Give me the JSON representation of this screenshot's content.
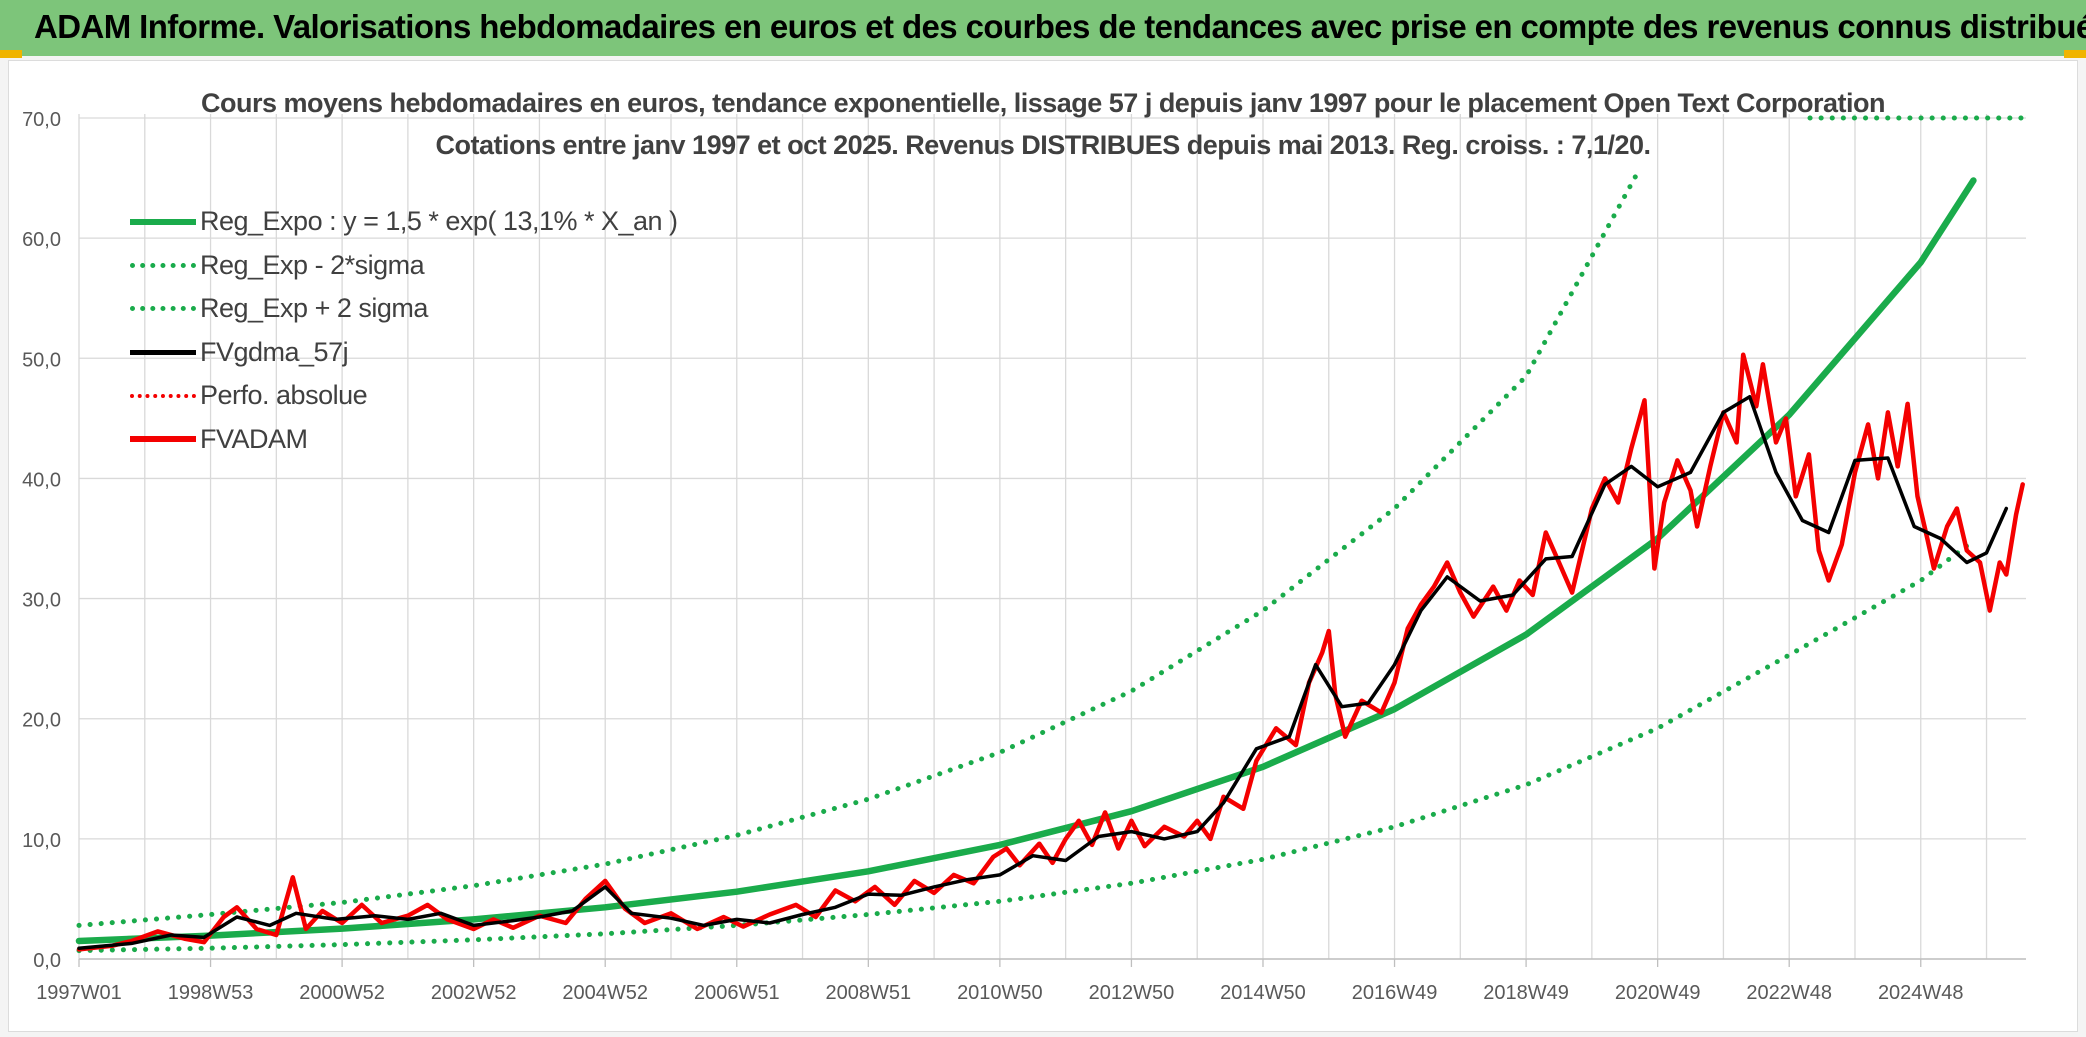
{
  "header": {
    "title": "ADAM Informe. Valorisations hebdomadaires en euros et des courbes de tendances avec prise en compte des revenus connus distribués"
  },
  "colors": {
    "header_bg": "#7dc57a",
    "trend_green": "#1aab4b",
    "adam_red": "#f40000",
    "smooth_black": "#000000"
  },
  "chart_data": {
    "type": "line",
    "title": "Cours moyens hebdomadaires en euros, tendance exponentielle, lissage 57 j depuis janv 1997 pour le placement Open Text Corporation",
    "subtitle": "Cotations entre janv 1997 et oct 2025. Revenus DISTRIBUES depuis mai 2013. Reg. croiss. : 7,1/20.",
    "xlabel": "",
    "ylabel": "",
    "x_range": [
      "1997W01",
      "2025W42"
    ],
    "x_ticks": [
      {
        "label": "1997W01",
        "year": 1997.0
      },
      {
        "label": "1998W53",
        "year": 1999.0
      },
      {
        "label": "2000W52",
        "year": 2001.0
      },
      {
        "label": "2002W52",
        "year": 2003.0
      },
      {
        "label": "2004W52",
        "year": 2005.0
      },
      {
        "label": "2006W51",
        "year": 2007.0
      },
      {
        "label": "2008W51",
        "year": 2009.0
      },
      {
        "label": "2010W50",
        "year": 2011.0
      },
      {
        "label": "2012W50",
        "year": 2013.0
      },
      {
        "label": "2014W50",
        "year": 2015.0
      },
      {
        "label": "2016W49",
        "year": 2017.0
      },
      {
        "label": "2018W49",
        "year": 2019.0
      },
      {
        "label": "2020W49",
        "year": 2021.0
      },
      {
        "label": "2022W48",
        "year": 2023.0
      },
      {
        "label": "2024W48",
        "year": 2025.0
      }
    ],
    "ylim": [
      0,
      70
    ],
    "y_ticks": [
      "0,0",
      "10,0",
      "20,0",
      "30,0",
      "40,0",
      "50,0",
      "60,0",
      "70,0"
    ],
    "grid": true,
    "legend_position": "top-left",
    "series": [
      {
        "name": "Reg_Expo : y = 1,5 * exp( 13,1% *  X_an )",
        "style": "solid-green",
        "points": [
          [
            1997.0,
            1.5
          ],
          [
            1999.0,
            1.95
          ],
          [
            2001.0,
            2.53
          ],
          [
            2003.0,
            3.3
          ],
          [
            2005.0,
            4.3
          ],
          [
            2007.0,
            5.6
          ],
          [
            2009.0,
            7.3
          ],
          [
            2011.0,
            9.5
          ],
          [
            2013.0,
            12.3
          ],
          [
            2015.0,
            16.0
          ],
          [
            2017.0,
            20.8
          ],
          [
            2019.0,
            27.0
          ],
          [
            2021.0,
            35.0
          ],
          [
            2023.0,
            45.3
          ],
          [
            2025.0,
            58.0
          ],
          [
            2025.8,
            64.8
          ]
        ]
      },
      {
        "name": "Reg_Exp - 2*sigma",
        "style": "dotted-green",
        "points": [
          [
            1997.0,
            0.7
          ],
          [
            1999.0,
            0.9
          ],
          [
            2001.0,
            1.2
          ],
          [
            2003.0,
            1.6
          ],
          [
            2005.0,
            2.1
          ],
          [
            2007.0,
            2.8
          ],
          [
            2009.0,
            3.7
          ],
          [
            2011.0,
            4.8
          ],
          [
            2013.0,
            6.3
          ],
          [
            2015.0,
            8.3
          ],
          [
            2017.0,
            11.0
          ],
          [
            2019.0,
            14.5
          ],
          [
            2021.0,
            19.2
          ],
          [
            2023.0,
            25.3
          ],
          [
            2025.0,
            31.5
          ],
          [
            2025.8,
            34.8
          ]
        ]
      },
      {
        "name": "Reg_Exp + 2 sigma",
        "style": "dotted-green",
        "points": [
          [
            1997.0,
            2.8
          ],
          [
            1999.0,
            3.7
          ],
          [
            2001.0,
            4.7
          ],
          [
            2003.0,
            6.1
          ],
          [
            2005.0,
            7.9
          ],
          [
            2007.0,
            10.3
          ],
          [
            2009.0,
            13.3
          ],
          [
            2011.0,
            17.2
          ],
          [
            2013.0,
            22.3
          ],
          [
            2015.0,
            29.0
          ],
          [
            2017.0,
            37.5
          ],
          [
            2019.0,
            48.5
          ],
          [
            2020.7,
            65.5
          ]
        ]
      },
      {
        "name": "FVgdma_57j",
        "style": "solid-black",
        "points": [
          [
            1997.0,
            0.9
          ],
          [
            1997.8,
            1.3
          ],
          [
            1998.4,
            2.0
          ],
          [
            1998.9,
            1.8
          ],
          [
            1999.4,
            3.5
          ],
          [
            1999.9,
            2.8
          ],
          [
            2000.3,
            3.8
          ],
          [
            2000.9,
            3.3
          ],
          [
            2001.5,
            3.6
          ],
          [
            2002.0,
            3.3
          ],
          [
            2002.5,
            3.8
          ],
          [
            2003.0,
            2.8
          ],
          [
            2003.6,
            3.2
          ],
          [
            2004.0,
            3.5
          ],
          [
            2004.5,
            4.0
          ],
          [
            2005.0,
            6.0
          ],
          [
            2005.4,
            3.8
          ],
          [
            2006.0,
            3.4
          ],
          [
            2006.5,
            2.8
          ],
          [
            2007.0,
            3.3
          ],
          [
            2007.5,
            3.0
          ],
          [
            2008.0,
            3.7
          ],
          [
            2008.5,
            4.3
          ],
          [
            2009.0,
            5.4
          ],
          [
            2009.5,
            5.3
          ],
          [
            2010.0,
            6.0
          ],
          [
            2010.5,
            6.6
          ],
          [
            2011.0,
            7.0
          ],
          [
            2011.5,
            8.6
          ],
          [
            2012.0,
            8.2
          ],
          [
            2012.5,
            10.2
          ],
          [
            2013.0,
            10.6
          ],
          [
            2013.5,
            10.0
          ],
          [
            2014.0,
            10.6
          ],
          [
            2014.4,
            13.0
          ],
          [
            2014.9,
            17.5
          ],
          [
            2015.4,
            18.5
          ],
          [
            2015.8,
            24.5
          ],
          [
            2016.2,
            21.0
          ],
          [
            2016.6,
            21.3
          ],
          [
            2017.0,
            24.5
          ],
          [
            2017.4,
            29.0
          ],
          [
            2017.8,
            31.8
          ],
          [
            2018.3,
            29.8
          ],
          [
            2018.8,
            30.3
          ],
          [
            2019.3,
            33.3
          ],
          [
            2019.7,
            33.5
          ],
          [
            2020.2,
            39.5
          ],
          [
            2020.6,
            41.0
          ],
          [
            2021.0,
            39.3
          ],
          [
            2021.5,
            40.5
          ],
          [
            2022.0,
            45.5
          ],
          [
            2022.4,
            46.8
          ],
          [
            2022.8,
            40.5
          ],
          [
            2023.2,
            36.5
          ],
          [
            2023.6,
            35.5
          ],
          [
            2024.0,
            41.5
          ],
          [
            2024.5,
            41.7
          ],
          [
            2024.9,
            36.0
          ],
          [
            2025.3,
            35.0
          ],
          [
            2025.7,
            33.0
          ],
          [
            2026.0,
            33.8
          ],
          [
            2026.3,
            37.5
          ]
        ]
      },
      {
        "name": "Perfo. absolue",
        "style": "dotted-red",
        "points": []
      },
      {
        "name": "FVADAM",
        "style": "solid-red",
        "points": [
          [
            1997.0,
            0.8
          ],
          [
            1997.5,
            1.1
          ],
          [
            1997.8,
            1.5
          ],
          [
            1998.2,
            2.3
          ],
          [
            1998.6,
            1.7
          ],
          [
            1998.9,
            1.4
          ],
          [
            1999.2,
            3.5
          ],
          [
            1999.4,
            4.3
          ],
          [
            1999.7,
            2.5
          ],
          [
            2000.0,
            2.0
          ],
          [
            2000.25,
            6.8
          ],
          [
            2000.45,
            2.5
          ],
          [
            2000.7,
            4.0
          ],
          [
            2001.0,
            3.0
          ],
          [
            2001.3,
            4.5
          ],
          [
            2001.6,
            3.0
          ],
          [
            2002.0,
            3.6
          ],
          [
            2002.3,
            4.5
          ],
          [
            2002.6,
            3.3
          ],
          [
            2003.0,
            2.5
          ],
          [
            2003.3,
            3.3
          ],
          [
            2003.6,
            2.6
          ],
          [
            2004.0,
            3.6
          ],
          [
            2004.4,
            3.0
          ],
          [
            2004.7,
            5.0
          ],
          [
            2005.0,
            6.5
          ],
          [
            2005.3,
            4.2
          ],
          [
            2005.6,
            3.0
          ],
          [
            2006.0,
            3.8
          ],
          [
            2006.4,
            2.5
          ],
          [
            2006.8,
            3.5
          ],
          [
            2007.1,
            2.7
          ],
          [
            2007.5,
            3.7
          ],
          [
            2007.9,
            4.5
          ],
          [
            2008.2,
            3.5
          ],
          [
            2008.5,
            5.7
          ],
          [
            2008.8,
            4.8
          ],
          [
            2009.1,
            6.0
          ],
          [
            2009.4,
            4.5
          ],
          [
            2009.7,
            6.5
          ],
          [
            2010.0,
            5.5
          ],
          [
            2010.3,
            7.0
          ],
          [
            2010.6,
            6.3
          ],
          [
            2010.9,
            8.5
          ],
          [
            2011.1,
            9.2
          ],
          [
            2011.3,
            7.8
          ],
          [
            2011.6,
            9.6
          ],
          [
            2011.8,
            8.0
          ],
          [
            2012.0,
            10.0
          ],
          [
            2012.2,
            11.5
          ],
          [
            2012.4,
            9.5
          ],
          [
            2012.6,
            12.2
          ],
          [
            2012.8,
            9.2
          ],
          [
            2013.0,
            11.5
          ],
          [
            2013.2,
            9.4
          ],
          [
            2013.5,
            11.0
          ],
          [
            2013.8,
            10.2
          ],
          [
            2014.0,
            11.5
          ],
          [
            2014.2,
            10.0
          ],
          [
            2014.4,
            13.5
          ],
          [
            2014.7,
            12.5
          ],
          [
            2014.9,
            16.5
          ],
          [
            2015.2,
            19.2
          ],
          [
            2015.5,
            17.8
          ],
          [
            2015.7,
            23.0
          ],
          [
            2015.9,
            25.5
          ],
          [
            2016.0,
            27.3
          ],
          [
            2016.1,
            22.0
          ],
          [
            2016.25,
            18.5
          ],
          [
            2016.5,
            21.5
          ],
          [
            2016.8,
            20.5
          ],
          [
            2017.0,
            23.0
          ],
          [
            2017.2,
            27.5
          ],
          [
            2017.4,
            29.5
          ],
          [
            2017.6,
            31.0
          ],
          [
            2017.8,
            33.0
          ],
          [
            2018.0,
            30.5
          ],
          [
            2018.2,
            28.5
          ],
          [
            2018.5,
            31.0
          ],
          [
            2018.7,
            29.0
          ],
          [
            2018.9,
            31.5
          ],
          [
            2019.1,
            30.3
          ],
          [
            2019.3,
            35.5
          ],
          [
            2019.5,
            33.0
          ],
          [
            2019.7,
            30.5
          ],
          [
            2020.0,
            37.5
          ],
          [
            2020.2,
            40.0
          ],
          [
            2020.4,
            38.0
          ],
          [
            2020.6,
            42.5
          ],
          [
            2020.8,
            46.5
          ],
          [
            2020.95,
            32.5
          ],
          [
            2021.1,
            38.0
          ],
          [
            2021.3,
            41.5
          ],
          [
            2021.5,
            39.0
          ],
          [
            2021.6,
            36.0
          ],
          [
            2021.8,
            41.0
          ],
          [
            2022.0,
            45.5
          ],
          [
            2022.2,
            43.0
          ],
          [
            2022.3,
            50.3
          ],
          [
            2022.5,
            46.0
          ],
          [
            2022.6,
            49.5
          ],
          [
            2022.8,
            43.0
          ],
          [
            2022.95,
            45.0
          ],
          [
            2023.1,
            38.5
          ],
          [
            2023.3,
            42.0
          ],
          [
            2023.45,
            34.0
          ],
          [
            2023.6,
            31.5
          ],
          [
            2023.8,
            34.5
          ],
          [
            2024.0,
            40.5
          ],
          [
            2024.2,
            44.5
          ],
          [
            2024.35,
            40.0
          ],
          [
            2024.5,
            45.5
          ],
          [
            2024.65,
            41.0
          ],
          [
            2024.8,
            46.2
          ],
          [
            2024.95,
            38.5
          ],
          [
            2025.1,
            35.0
          ],
          [
            2025.2,
            32.5
          ],
          [
            2025.4,
            36.0
          ],
          [
            2025.55,
            37.5
          ],
          [
            2025.7,
            34.0
          ],
          [
            2025.9,
            33.0
          ],
          [
            2026.05,
            29.0
          ],
          [
            2026.2,
            33.0
          ],
          [
            2026.3,
            32.0
          ],
          [
            2026.45,
            37.0
          ],
          [
            2026.55,
            39.5
          ]
        ]
      }
    ]
  }
}
